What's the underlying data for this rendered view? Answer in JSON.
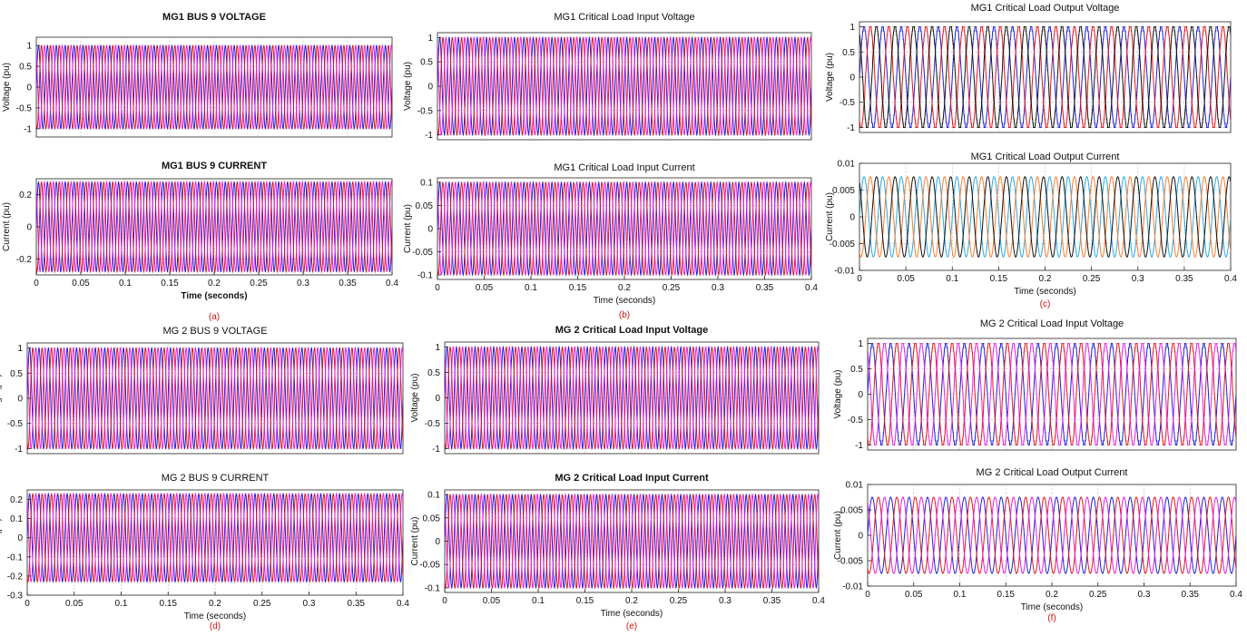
{
  "chart_data": [
    {
      "panel": "a-top",
      "type": "line",
      "title": "MG1 BUS 9 VOLTAGE",
      "title_bold": true,
      "ylabel": "Voltage (pu)",
      "xlabel": "",
      "xlim": [
        0,
        0.4
      ],
      "ylim": [
        -1.2,
        1.2
      ],
      "xticks": [],
      "yticks": [
        -1,
        -0.5,
        0,
        0.5,
        1
      ],
      "ytick_labels": [
        "-1",
        "-0.5",
        "0",
        "0.5",
        "1"
      ],
      "signal": {
        "amplitude": 1.0,
        "frequency_hz": 100,
        "style": "sine"
      },
      "series": [
        {
          "values_phase_deg": 0,
          "color": "#1f1fd6"
        },
        {
          "values_phase_deg": -120,
          "color": "#e0141e"
        },
        {
          "values_phase_deg": 120,
          "color": "#e020e0"
        }
      ]
    },
    {
      "panel": "a-bottom",
      "type": "line",
      "title": "MG1 BUS 9 CURRENT",
      "title_bold": true,
      "ylabel": "Current (pu)",
      "xlabel": "Time (seconds)",
      "xlabel_bold": true,
      "xlim": [
        0,
        0.4
      ],
      "ylim": [
        -0.3,
        0.3
      ],
      "xticks": [
        0,
        0.05,
        0.1,
        0.15,
        0.2,
        0.25,
        0.3,
        0.35,
        0.4
      ],
      "xtick_labels": [
        "0",
        "0.05",
        "0.1",
        "0.15",
        "0.2",
        "0.25",
        "0.3",
        "0.35",
        "0.4"
      ],
      "yticks": [
        -0.2,
        0,
        0.2
      ],
      "ytick_labels": [
        "-0.2",
        "0",
        "0.2"
      ],
      "signal": {
        "amplitude": 0.28,
        "frequency_hz": 100,
        "style": "sine"
      },
      "series": [
        {
          "values_phase_deg": 0,
          "color": "#1f1fd6"
        },
        {
          "values_phase_deg": -120,
          "color": "#e0141e"
        },
        {
          "values_phase_deg": 120,
          "color": "#e020e0"
        }
      ],
      "caption": "(a)"
    },
    {
      "panel": "b-top",
      "type": "line",
      "title": "MG1 Critical Load Input Voltage",
      "title_bold": false,
      "ylabel": "Voltage (pu)",
      "xlabel": "",
      "xlim": [
        0,
        0.4
      ],
      "ylim": [
        -1.1,
        1.1
      ],
      "xticks": [],
      "yticks": [
        -1,
        -0.5,
        0,
        0.5,
        1
      ],
      "ytick_labels": [
        "-1",
        "-0.5",
        "0",
        "0.5",
        "1"
      ],
      "signal": {
        "amplitude": 1.0,
        "frequency_hz": 100,
        "style": "sine"
      },
      "series": [
        {
          "values_phase_deg": 0,
          "color": "#1f1fd6"
        },
        {
          "values_phase_deg": -120,
          "color": "#e0141e"
        },
        {
          "values_phase_deg": 120,
          "color": "#e020e0"
        }
      ]
    },
    {
      "panel": "b-bottom",
      "type": "line",
      "title": "MG1 Critical Load Input Current",
      "title_bold": false,
      "ylabel": "Current (pu)",
      "xlabel": "Time (seconds)",
      "xlabel_bold": false,
      "xlim": [
        0,
        0.4
      ],
      "ylim": [
        -0.11,
        0.11
      ],
      "xticks": [
        0,
        0.05,
        0.1,
        0.15,
        0.2,
        0.25,
        0.3,
        0.35,
        0.4
      ],
      "xtick_labels": [
        "0",
        "0.05",
        "0.1",
        "0.15",
        "0.2",
        "0.25",
        "0.3",
        "0.35",
        "0.4"
      ],
      "yticks": [
        -0.1,
        -0.05,
        0,
        0.05,
        0.1
      ],
      "ytick_labels": [
        "-0.1",
        "-0.05",
        "0",
        "0.05",
        "0.1"
      ],
      "signal": {
        "amplitude": 0.1,
        "frequency_hz": 100,
        "style": "sine"
      },
      "series": [
        {
          "values_phase_deg": 0,
          "color": "#1f1fd6"
        },
        {
          "values_phase_deg": -120,
          "color": "#e0141e"
        },
        {
          "values_phase_deg": 120,
          "color": "#e020e0"
        }
      ],
      "caption": "(b)"
    },
    {
      "panel": "c-top",
      "type": "line",
      "title": "MG1 Critical  Load  Output  Voltage",
      "title_bold": false,
      "ylabel": "Voltage (pu)",
      "xlabel": "",
      "xlim": [
        0,
        0.4
      ],
      "ylim": [
        -1.1,
        1.1
      ],
      "xticks": [],
      "yticks": [
        -1,
        -0.5,
        0,
        0.5,
        1
      ],
      "ytick_labels": [
        "-1",
        "-0.5",
        "0",
        "0.5",
        "1"
      ],
      "signal": {
        "amplitude": 1.0,
        "frequency_hz": 50,
        "style": "stepped"
      },
      "series": [
        {
          "values_phase_deg": 0,
          "color": "#1f1fd6"
        },
        {
          "values_phase_deg": -120,
          "color": "#e0141e"
        },
        {
          "values_phase_deg": 120,
          "color": "#111111"
        }
      ]
    },
    {
      "panel": "c-bottom",
      "type": "line",
      "title": "MG1 Critical Load Output  Current",
      "title_bold": false,
      "ylabel": "Current (pu)",
      "xlabel": "Time (seconds)",
      "xlabel_bold": false,
      "xlim": [
        0,
        0.4
      ],
      "ylim": [
        -0.01,
        0.01
      ],
      "xticks": [
        0,
        0.05,
        0.1,
        0.15,
        0.2,
        0.25,
        0.3,
        0.35,
        0.4
      ],
      "xtick_labels": [
        "0",
        "0.05",
        "0.1",
        "0.15",
        "0.2",
        "0.25",
        "0.3",
        "0.35",
        "0.4"
      ],
      "yticks": [
        -0.01,
        -0.005,
        0,
        0.005,
        0.01
      ],
      "ytick_labels": [
        "-0.01",
        "-0.005",
        "0",
        "0.005",
        "0.01"
      ],
      "signal": {
        "amplitude": 0.0075,
        "frequency_hz": 50,
        "style": "sine"
      },
      "series": [
        {
          "values_phase_deg": 0,
          "color": "#29a9e6"
        },
        {
          "values_phase_deg": -120,
          "color": "#ff7a2a"
        },
        {
          "values_phase_deg": 120,
          "color": "#111111"
        }
      ],
      "caption": "(c)"
    },
    {
      "panel": "d-top",
      "type": "line",
      "title": "MG 2 BUS 9 VOLTAGE",
      "title_bold": false,
      "ylabel": "Voltage (pu)",
      "xlabel": "",
      "xlim": [
        0,
        0.4
      ],
      "ylim": [
        -1.1,
        1.1
      ],
      "xticks": [],
      "yticks": [
        -1,
        -0.5,
        0,
        0.5,
        1
      ],
      "ytick_labels": [
        "-1",
        "-0.5",
        "0",
        "0.5",
        "1"
      ],
      "signal": {
        "amplitude": 1.0,
        "frequency_hz": 100,
        "style": "sine"
      },
      "series": [
        {
          "values_phase_deg": 0,
          "color": "#1f1fd6"
        },
        {
          "values_phase_deg": -120,
          "color": "#e0141e"
        },
        {
          "values_phase_deg": 120,
          "color": "#e020e0"
        }
      ]
    },
    {
      "panel": "d-bottom",
      "type": "line",
      "title": "MG 2 BUS 9 CURRENT",
      "title_bold": false,
      "ylabel": "Current (pu)",
      "xlabel": "Time (seconds)",
      "xlabel_bold": false,
      "xlim": [
        0,
        0.4
      ],
      "ylim": [
        -0.3,
        0.25
      ],
      "xticks": [
        0,
        0.05,
        0.1,
        0.15,
        0.2,
        0.25,
        0.3,
        0.35,
        0.4
      ],
      "xtick_labels": [
        "0",
        "0.05",
        "0.1",
        "0.15",
        "0.2",
        "0.25",
        "0.3",
        "0.35",
        "0.4"
      ],
      "yticks": [
        -0.3,
        -0.2,
        -0.1,
        0,
        0.1,
        0.2
      ],
      "ytick_labels": [
        "-0.3",
        "-0.2",
        "-0.1",
        "0",
        "0.1",
        "0.2"
      ],
      "signal": {
        "amplitude": 0.23,
        "frequency_hz": 100,
        "style": "sine"
      },
      "series": [
        {
          "values_phase_deg": 0,
          "color": "#1f1fd6"
        },
        {
          "values_phase_deg": -120,
          "color": "#e0141e"
        },
        {
          "values_phase_deg": 120,
          "color": "#e020e0"
        }
      ],
      "caption": "(d)"
    },
    {
      "panel": "e-top",
      "type": "line",
      "title": "MG 2 Critical Load Input Voltage",
      "title_bold": true,
      "ylabel": "Voltage (pu)",
      "xlabel": "",
      "xlim": [
        0,
        0.4
      ],
      "ylim": [
        -1.1,
        1.1
      ],
      "xticks": [],
      "yticks": [
        -1,
        -0.5,
        0,
        0.5,
        1
      ],
      "ytick_labels": [
        "-1",
        "-0.5",
        "0",
        "0.5",
        "1"
      ],
      "signal": {
        "amplitude": 1.0,
        "frequency_hz": 100,
        "style": "sine"
      },
      "series": [
        {
          "values_phase_deg": 0,
          "color": "#1f1fd6"
        },
        {
          "values_phase_deg": -120,
          "color": "#e0141e"
        },
        {
          "values_phase_deg": 120,
          "color": "#e020e0"
        }
      ]
    },
    {
      "panel": "e-bottom",
      "type": "line",
      "title": "MG 2 Critical Load Input Current",
      "title_bold": true,
      "ylabel": "Current (pu)",
      "xlabel": "Time (seconds)",
      "xlabel_bold": false,
      "xlim": [
        0,
        0.4
      ],
      "ylim": [
        -0.11,
        0.11
      ],
      "xticks": [
        0,
        0.05,
        0.1,
        0.15,
        0.2,
        0.25,
        0.3,
        0.35,
        0.4
      ],
      "xtick_labels": [
        "0",
        "0.05",
        "0.1",
        "0.15",
        "0.2",
        "0.25",
        "0.3",
        "0.35",
        "0.4"
      ],
      "yticks": [
        -0.1,
        -0.05,
        0,
        0.05,
        0.1
      ],
      "ytick_labels": [
        "-0.1",
        "-0.05",
        "0",
        "0.05",
        "0.1"
      ],
      "signal": {
        "amplitude": 0.1,
        "frequency_hz": 100,
        "style": "sine"
      },
      "series": [
        {
          "values_phase_deg": 0,
          "color": "#1f1fd6"
        },
        {
          "values_phase_deg": -120,
          "color": "#e0141e"
        },
        {
          "values_phase_deg": 120,
          "color": "#e020e0"
        }
      ],
      "caption": "(e)"
    },
    {
      "panel": "f-top",
      "type": "line",
      "title": "MG 2 Critical Load Input  Voltage",
      "title_bold": false,
      "ylabel": "Voltage (pu)",
      "xlabel": "",
      "xlim": [
        0,
        0.4
      ],
      "ylim": [
        -1.1,
        1.1
      ],
      "xticks": [],
      "yticks": [
        -1,
        -0.5,
        0,
        0.5,
        1
      ],
      "ytick_labels": [
        "-1",
        "-0.5",
        "0",
        "0.5",
        "1"
      ],
      "signal": {
        "amplitude": 1.0,
        "frequency_hz": 50,
        "style": "stepped"
      },
      "series": [
        {
          "values_phase_deg": 0,
          "color": "#1f1fd6"
        },
        {
          "values_phase_deg": -120,
          "color": "#e0141e"
        },
        {
          "values_phase_deg": 120,
          "color": "#e020e0"
        }
      ]
    },
    {
      "panel": "f-bottom",
      "type": "line",
      "title": "MG 2 Critical Load Output Current",
      "title_bold": false,
      "ylabel": "Current (pu)",
      "xlabel": "Time (seconds)",
      "xlabel_bold": false,
      "xlim": [
        0,
        0.4
      ],
      "ylim": [
        -0.01,
        0.01
      ],
      "xticks": [
        0,
        0.05,
        0.1,
        0.15,
        0.2,
        0.25,
        0.3,
        0.35,
        0.4
      ],
      "xtick_labels": [
        "0",
        "0.05",
        "0.1",
        "0.15",
        "0.2",
        "0.25",
        "0.3",
        "0.35",
        "0.4"
      ],
      "yticks": [
        -0.01,
        -0.005,
        0,
        0.005,
        0.01
      ],
      "ytick_labels": [
        "-0.01",
        "-0.005",
        "0",
        "0.005",
        "0.01"
      ],
      "signal": {
        "amplitude": 0.0075,
        "frequency_hz": 50,
        "style": "sine"
      },
      "series": [
        {
          "values_phase_deg": 0,
          "color": "#1f1fd6"
        },
        {
          "values_phase_deg": -120,
          "color": "#e0141e"
        },
        {
          "values_phase_deg": 120,
          "color": "#e020e0"
        }
      ],
      "caption": "(f)"
    }
  ]
}
